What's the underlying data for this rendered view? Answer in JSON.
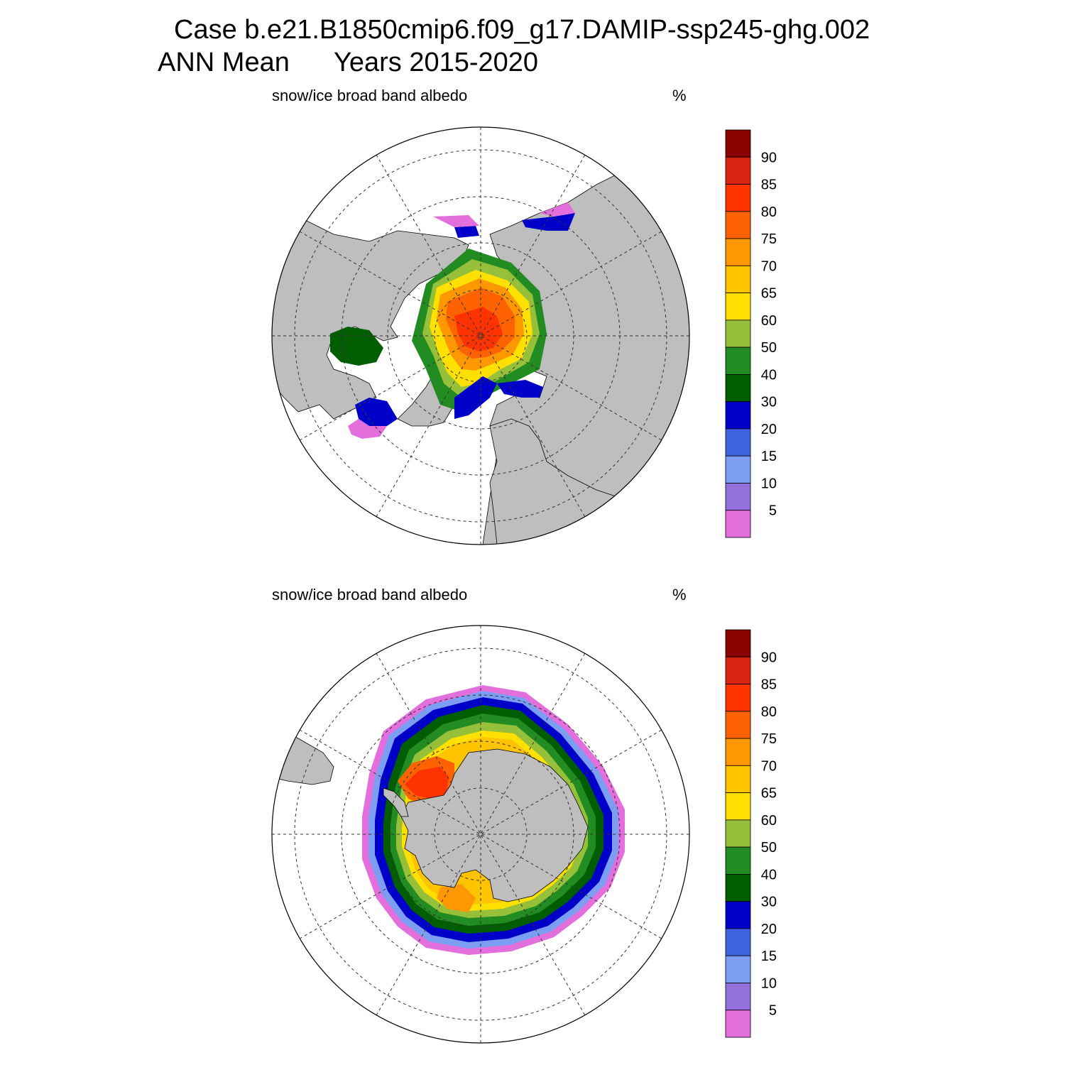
{
  "title": {
    "line1": "Case b.e21.B1850cmip6.f09_g17.DAMIP-ssp245-ghg.002",
    "line2_left": "ANN Mean",
    "line2_right": "Years 2015-2020"
  },
  "panels": [
    {
      "id": "north",
      "hemisphere": "Northern Hemisphere",
      "variable": "snow/ice broad band albedo",
      "units": "%"
    },
    {
      "id": "south",
      "hemisphere": "Southern Hemisphere",
      "variable": "snow/ice broad band albedo",
      "units": "%"
    }
  ],
  "colors": {
    "land": "#bebebe",
    "ocean": "#ffffff",
    "graticule": "#333333"
  },
  "colorbar": {
    "levels": [
      "5",
      "10",
      "15",
      "20",
      "30",
      "40",
      "50",
      "60",
      "65",
      "70",
      "75",
      "80",
      "85",
      "90"
    ],
    "colors": [
      "#e36fdc",
      "#9370db",
      "#7b9ef2",
      "#3e63e0",
      "#0000c8",
      "#005d00",
      "#228b22",
      "#96bf3a",
      "#ffe000",
      "#ffc300",
      "#ff9700",
      "#ff6200",
      "#ff3300",
      "#d92414",
      "#8b0000"
    ]
  }
}
